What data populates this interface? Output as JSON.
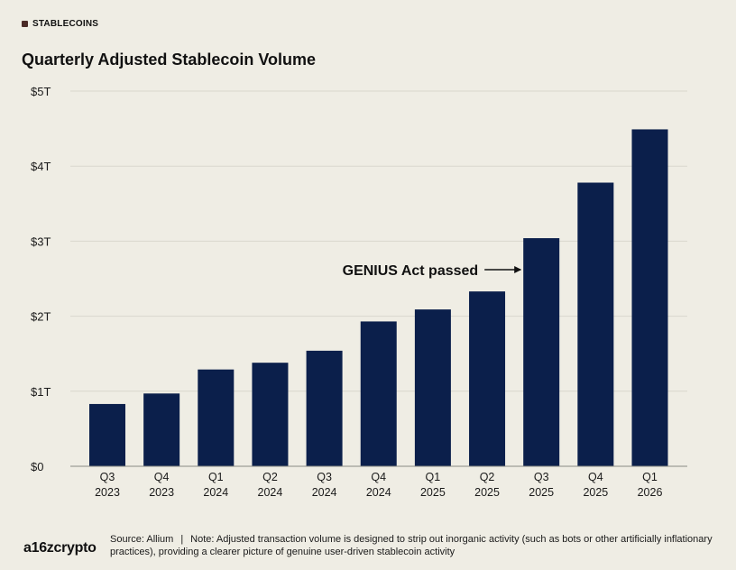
{
  "header": {
    "tag": "STABLECOINS",
    "title": "Quarterly Adjusted Stablecoin Volume"
  },
  "colors": {
    "background": "#efede4",
    "bar": "#0b1f4b",
    "grid": "#d9d7cd",
    "tag_square": "#4a2a26"
  },
  "chart_data": {
    "type": "bar",
    "title": "Quarterly Adjusted Stablecoin Volume",
    "xlabel": "",
    "ylabel": "",
    "categories": [
      [
        "Q3",
        "2023"
      ],
      [
        "Q4",
        "2023"
      ],
      [
        "Q1",
        "2024"
      ],
      [
        "Q2",
        "2024"
      ],
      [
        "Q3",
        "2024"
      ],
      [
        "Q4",
        "2024"
      ],
      [
        "Q1",
        "2025"
      ],
      [
        "Q2",
        "2025"
      ],
      [
        "Q3",
        "2025"
      ],
      [
        "Q4",
        "2025"
      ],
      [
        "Q1",
        "2026"
      ]
    ],
    "values": [
      0.83,
      0.97,
      1.29,
      1.38,
      1.54,
      1.93,
      2.09,
      2.33,
      3.04,
      3.78,
      4.49
    ],
    "unit": "trillion USD",
    "ylim": [
      0,
      5
    ],
    "yticks": [
      0,
      1,
      2,
      3,
      4,
      5
    ],
    "ytick_labels": [
      "$0",
      "$1T",
      "$2T",
      "$3T",
      "$4T",
      "$5T"
    ],
    "grid": true,
    "legend": "none",
    "annotations": [
      {
        "text": "GENIUS Act passed",
        "points_to": "Q3 2025",
        "arrow": "right"
      }
    ]
  },
  "footer": {
    "logo": "a16zcrypto",
    "source": "Source: Allium",
    "separator": "|",
    "note": "Note: Adjusted transaction volume is designed to strip out inorganic activity (such as bots or other artificially inflationary practices), providing a clearer picture of genuine user-driven stablecoin activity"
  }
}
